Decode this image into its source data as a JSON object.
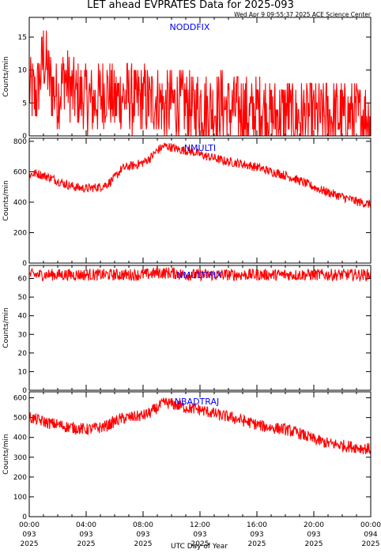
{
  "header": {
    "title": "LET ahead EVPRATES Data for 2025-093",
    "timestamp": "Wed Apr  9 09:55:37 2025 ACE Science Center"
  },
  "xaxis": {
    "label": "UTC Day of Year",
    "ticks": [
      {
        "time": "00:00",
        "doy": "093",
        "year": "2025"
      },
      {
        "time": "04:00",
        "doy": "093",
        "year": "2025"
      },
      {
        "time": "08:00",
        "doy": "093",
        "year": "2025"
      },
      {
        "time": "12:00",
        "doy": "093",
        "year": "2025"
      },
      {
        "time": "16:00",
        "doy": "093",
        "year": "2025"
      },
      {
        "time": "20:00",
        "doy": "093",
        "year": "2025"
      },
      {
        "time": "00:00",
        "doy": "094",
        "year": "2025"
      }
    ]
  },
  "colors": {
    "series": "#ff0000",
    "panel_label": "#0000ff",
    "axis": "#000000"
  },
  "chart_data": [
    {
      "type": "line",
      "title": "NODDFIX",
      "ylabel": "Counts/min",
      "xlim": [
        0,
        24
      ],
      "ylim": [
        0,
        18
      ],
      "yticks": [
        0,
        5,
        10,
        15
      ],
      "series": [
        {
          "values": [
            [
              0,
              7
            ],
            [
              0.5,
              6
            ],
            [
              1,
              12
            ],
            [
              1.5,
              8
            ],
            [
              2,
              6
            ],
            [
              2.5,
              9
            ],
            [
              3,
              7
            ],
            [
              3.5,
              6
            ],
            [
              4,
              6
            ],
            [
              4.5,
              5
            ],
            [
              5,
              6
            ],
            [
              5.5,
              7
            ],
            [
              6,
              5
            ],
            [
              6.5,
              6
            ],
            [
              7,
              6
            ],
            [
              7.5,
              5
            ],
            [
              8,
              6
            ],
            [
              8.5,
              5
            ],
            [
              9,
              6
            ],
            [
              9.5,
              4
            ],
            [
              10,
              5
            ],
            [
              10.5,
              5
            ],
            [
              11,
              5
            ],
            [
              11.5,
              4
            ],
            [
              12,
              5
            ],
            [
              12.5,
              4
            ],
            [
              13,
              4
            ],
            [
              13.5,
              5
            ],
            [
              14,
              4
            ],
            [
              14.5,
              4
            ],
            [
              15,
              4
            ],
            [
              15.5,
              3
            ],
            [
              16,
              4
            ],
            [
              16.5,
              4
            ],
            [
              17,
              3
            ],
            [
              17.5,
              3
            ],
            [
              18,
              4
            ],
            [
              18.5,
              3
            ],
            [
              19,
              3
            ],
            [
              19.5,
              3
            ],
            [
              20,
              3
            ],
            [
              20.5,
              3
            ],
            [
              21,
              3
            ],
            [
              21.5,
              3
            ],
            [
              22,
              3
            ],
            [
              22.5,
              3
            ],
            [
              23,
              3
            ],
            [
              23.5,
              3
            ],
            [
              24,
              3
            ]
          ]
        }
      ]
    },
    {
      "type": "line",
      "title": "NMULTI",
      "ylabel": "Counts/min",
      "xlim": [
        0,
        24
      ],
      "ylim": [
        0,
        820
      ],
      "yticks": [
        0,
        200,
        400,
        600,
        800
      ],
      "series": [
        {
          "values": [
            [
              0,
              580
            ],
            [
              0.5,
              590
            ],
            [
              1,
              575
            ],
            [
              1.5,
              560
            ],
            [
              2,
              540
            ],
            [
              2.5,
              520
            ],
            [
              3,
              505
            ],
            [
              3.5,
              495
            ],
            [
              4,
              490
            ],
            [
              4.5,
              495
            ],
            [
              5,
              500
            ],
            [
              5.5,
              520
            ],
            [
              6,
              560
            ],
            [
              6.5,
              620
            ],
            [
              7,
              635
            ],
            [
              7.5,
              645
            ],
            [
              8,
              660
            ],
            [
              8.5,
              690
            ],
            [
              9,
              740
            ],
            [
              9.5,
              770
            ],
            [
              10,
              760
            ],
            [
              10.5,
              745
            ],
            [
              11,
              740
            ],
            [
              11.5,
              730
            ],
            [
              12,
              715
            ],
            [
              12.5,
              700
            ],
            [
              13,
              690
            ],
            [
              13.5,
              675
            ],
            [
              14,
              665
            ],
            [
              14.5,
              660
            ],
            [
              15,
              650
            ],
            [
              15.5,
              640
            ],
            [
              16,
              630
            ],
            [
              16.5,
              615
            ],
            [
              17,
              600
            ],
            [
              17.5,
              590
            ],
            [
              18,
              575
            ],
            [
              18.5,
              560
            ],
            [
              19,
              540
            ],
            [
              19.5,
              520
            ],
            [
              20,
              500
            ],
            [
              20.5,
              480
            ],
            [
              21,
              465
            ],
            [
              21.5,
              450
            ],
            [
              22,
              435
            ],
            [
              22.5,
              420
            ],
            [
              23,
              405
            ],
            [
              23.5,
              395
            ],
            [
              24,
              385
            ]
          ]
        }
      ]
    },
    {
      "type": "line",
      "title": "NMULTIFIX",
      "ylabel": "Counts/min",
      "xlim": [
        0,
        24
      ],
      "ylim": [
        0,
        67
      ],
      "yticks": [
        0,
        10,
        20,
        30,
        40,
        50,
        60
      ],
      "series": [
        {
          "values": [
            [
              0,
              62
            ],
            [
              1,
              62
            ],
            [
              2,
              62
            ],
            [
              3,
              62
            ],
            [
              4,
              62
            ],
            [
              5,
              62
            ],
            [
              6,
              62
            ],
            [
              7,
              62
            ],
            [
              8,
              62
            ],
            [
              9,
              63
            ],
            [
              10,
              63
            ],
            [
              11,
              62
            ],
            [
              12,
              62
            ],
            [
              13,
              62
            ],
            [
              14,
              62
            ],
            [
              15,
              62
            ],
            [
              16,
              62
            ],
            [
              17,
              62
            ],
            [
              18,
              62
            ],
            [
              19,
              62
            ],
            [
              20,
              62
            ],
            [
              21,
              62
            ],
            [
              22,
              62
            ],
            [
              23,
              62
            ],
            [
              24,
              62
            ]
          ]
        }
      ]
    },
    {
      "type": "line",
      "title": "NBADTRAJ",
      "ylabel": "Counts/min",
      "xlim": [
        0,
        24
      ],
      "ylim": [
        0,
        630
      ],
      "yticks": [
        0,
        100,
        200,
        300,
        400,
        500,
        600
      ],
      "series": [
        {
          "values": [
            [
              0,
              500
            ],
            [
              0.5,
              490
            ],
            [
              1,
              480
            ],
            [
              1.5,
              470
            ],
            [
              2,
              465
            ],
            [
              2.5,
              455
            ],
            [
              3,
              450
            ],
            [
              3.5,
              445
            ],
            [
              4,
              440
            ],
            [
              4.5,
              445
            ],
            [
              5,
              450
            ],
            [
              5.5,
              460
            ],
            [
              6,
              480
            ],
            [
              6.5,
              495
            ],
            [
              7,
              500
            ],
            [
              7.5,
              505
            ],
            [
              8,
              510
            ],
            [
              8.5,
              525
            ],
            [
              9,
              550
            ],
            [
              9.5,
              575
            ],
            [
              10,
              570
            ],
            [
              10.5,
              560
            ],
            [
              11,
              550
            ],
            [
              11.5,
              545
            ],
            [
              12,
              540
            ],
            [
              12.5,
              530
            ],
            [
              13,
              520
            ],
            [
              13.5,
              510
            ],
            [
              14,
              505
            ],
            [
              14.5,
              495
            ],
            [
              15,
              485
            ],
            [
              15.5,
              475
            ],
            [
              16,
              465
            ],
            [
              16.5,
              455
            ],
            [
              17,
              450
            ],
            [
              17.5,
              445
            ],
            [
              18,
              440
            ],
            [
              18.5,
              430
            ],
            [
              19,
              420
            ],
            [
              19.5,
              405
            ],
            [
              20,
              390
            ],
            [
              20.5,
              380
            ],
            [
              21,
              370
            ],
            [
              21.5,
              365
            ],
            [
              22,
              360
            ],
            [
              22.5,
              355
            ],
            [
              23,
              350
            ],
            [
              23.5,
              345
            ],
            [
              24,
              340
            ]
          ]
        }
      ]
    }
  ]
}
